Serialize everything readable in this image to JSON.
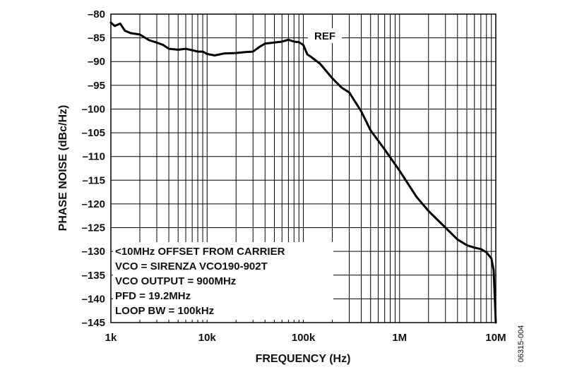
{
  "chart_data": {
    "type": "line",
    "xlabel": "FREQUENCY (Hz)",
    "ylabel": "PHASE NOISE (dBc/Hz)",
    "x_scale": "log",
    "xlim": [
      1000,
      10000000
    ],
    "ylim": [
      -145,
      -80
    ],
    "x_tick_labels": [
      "1k",
      "10k",
      "100k",
      "1M",
      "10M"
    ],
    "y_ticks": [
      -80,
      -85,
      -90,
      -95,
      -100,
      -105,
      -110,
      -115,
      -120,
      -125,
      -130,
      -135,
      -140,
      -145
    ],
    "y_tick_labels": [
      "–80",
      "–85",
      "–90",
      "–95",
      "–100",
      "–105",
      "–110",
      "–115",
      "–120",
      "–125",
      "–130",
      "–135",
      "–140",
      "–145"
    ],
    "grid": true,
    "reference_label": "REF",
    "annotations": [
      "<10MHz OFFSET FROM CARRIER",
      "VCO = SIRENZA VCO190-902T",
      "VCO OUTPUT = 900MHz",
      "PFD = 19.2MHz",
      "LOOP BW = 100kHz"
    ],
    "figure_id": "06315-004",
    "series": [
      {
        "x": [
          1000,
          1100,
          1250,
          1400,
          1600,
          2000,
          2500,
          3000,
          3500,
          4000,
          5000,
          6000,
          7000,
          8000,
          9000,
          10000,
          12000,
          15000,
          20000,
          25000,
          30000,
          35000,
          40000,
          50000,
          60000,
          70000,
          80000,
          90000,
          100000,
          110000,
          120000,
          150000,
          200000,
          250000,
          300000,
          400000,
          500000,
          700000,
          1000000,
          1500000,
          2000000,
          3000000,
          4000000,
          5000000,
          6000000,
          7000000,
          8000000,
          9000000,
          9500000,
          10000000
        ],
        "y": [
          -81.8,
          -82.5,
          -82.0,
          -83.5,
          -84.0,
          -84.3,
          -85.5,
          -86.0,
          -86.5,
          -87.3,
          -87.5,
          -87.3,
          -87.6,
          -87.9,
          -87.9,
          -88.4,
          -88.7,
          -88.3,
          -88.2,
          -88.0,
          -87.9,
          -86.9,
          -86.2,
          -86.0,
          -85.8,
          -85.4,
          -85.8,
          -85.9,
          -86.5,
          -88.5,
          -89.0,
          -90.5,
          -93.5,
          -95.5,
          -96.5,
          -100.5,
          -104.5,
          -108.5,
          -113.0,
          -118.5,
          -121.5,
          -125.0,
          -127.5,
          -128.7,
          -129.2,
          -129.5,
          -130.2,
          -131.5,
          -134.0,
          -145.0
        ]
      }
    ]
  }
}
